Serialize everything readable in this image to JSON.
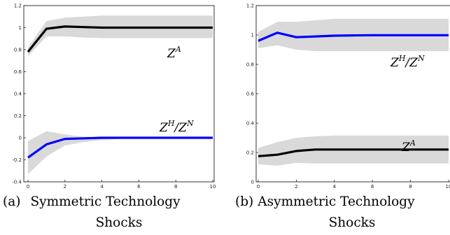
{
  "panels": [
    {
      "caption_tag": "(a)",
      "caption_line1": "Symmetric Technology",
      "caption_line2": "Shocks"
    },
    {
      "caption_tag": "(b)",
      "caption_line1": "Asymmetric Technology",
      "caption_line2": "Shocks"
    }
  ],
  "chart_data": [
    {
      "type": "line",
      "title": "",
      "xlabel": "",
      "ylabel": "",
      "xlim": [
        0,
        10
      ],
      "ylim": [
        -0.4,
        1.2
      ],
      "x_ticks": [
        0,
        2,
        4,
        6,
        8,
        10
      ],
      "y_ticks": [
        -0.4,
        -0.2,
        0,
        0.2,
        0.4,
        0.6,
        0.8,
        1,
        1.2
      ],
      "x_tick_labels": [
        "0",
        "2",
        "4",
        "6",
        "8",
        "10"
      ],
      "y_tick_labels": [
        "-0.4",
        "-0.2",
        "0",
        "0.2",
        "0.4",
        "0.6",
        "0.8",
        "1",
        "1.2"
      ],
      "grid": false,
      "band_color": "#d9d9d9",
      "series": [
        {
          "label_base": "Z",
          "label_sup": "A",
          "color": "#000000",
          "x": [
            0,
            1,
            2,
            3,
            4,
            5,
            6,
            7,
            8,
            9,
            10
          ],
          "values": [
            0.78,
            0.99,
            1.01,
            1.005,
            1.0,
            1.0,
            1.0,
            1.0,
            1.0,
            1.0,
            1.0
          ],
          "band_low": [
            0.74,
            0.92,
            0.92,
            0.91,
            0.905,
            0.905,
            0.905,
            0.905,
            0.905,
            0.905,
            0.905
          ],
          "band_high": [
            0.82,
            1.06,
            1.09,
            1.1,
            1.11,
            1.11,
            1.11,
            1.11,
            1.11,
            1.11,
            1.11
          ]
        },
        {
          "label_base": "Z",
          "label_sup": "H",
          "label_mid": "/Z",
          "label_sup2": "N",
          "color": "#0000ff",
          "x": [
            0,
            1,
            2,
            3,
            4,
            5,
            6,
            7,
            8,
            9,
            10
          ],
          "values": [
            -0.18,
            -0.06,
            -0.01,
            -0.005,
            0.0,
            0.0,
            0.0,
            0.0,
            0.0,
            0.0,
            0.0
          ],
          "band_low": [
            -0.33,
            -0.17,
            -0.07,
            -0.04,
            -0.02,
            -0.01,
            -0.005,
            -0.005,
            -0.005,
            -0.005,
            -0.005
          ],
          "band_high": [
            -0.03,
            0.06,
            0.03,
            0.01,
            0.005,
            0.003,
            0.003,
            0.003,
            0.003,
            0.003,
            0.003
          ]
        }
      ]
    },
    {
      "type": "line",
      "title": "",
      "xlabel": "",
      "ylabel": "",
      "xlim": [
        0,
        10
      ],
      "ylim": [
        0,
        1.2
      ],
      "x_ticks": [
        0,
        2,
        4,
        6,
        8,
        10
      ],
      "y_ticks": [
        0,
        0.2,
        0.4,
        0.6,
        0.8,
        1,
        1.2
      ],
      "x_tick_labels": [
        "0",
        "2",
        "4",
        "6",
        "8",
        "10"
      ],
      "y_tick_labels": [
        "0",
        "0.2",
        "0.4",
        "0.6",
        "0.8",
        "1",
        "1.2"
      ],
      "grid": false,
      "band_color": "#d9d9d9",
      "series": [
        {
          "label_base": "Z",
          "label_sup": "H",
          "label_mid": "/Z",
          "label_sup2": "N",
          "color": "#0000ff",
          "x": [
            0,
            1,
            2,
            3,
            4,
            5,
            6,
            7,
            8,
            9,
            10
          ],
          "values": [
            0.96,
            1.015,
            0.985,
            0.99,
            0.995,
            0.997,
            0.998,
            0.998,
            0.998,
            0.998,
            0.998
          ],
          "band_low": [
            0.91,
            0.93,
            0.9,
            0.89,
            0.89,
            0.89,
            0.89,
            0.89,
            0.89,
            0.89,
            0.89
          ],
          "band_high": [
            1.02,
            1.09,
            1.09,
            1.1,
            1.11,
            1.11,
            1.11,
            1.11,
            1.11,
            1.11,
            1.11
          ]
        },
        {
          "label_base": "Z",
          "label_sup": "A",
          "color": "#000000",
          "x": [
            0,
            1,
            2,
            3,
            4,
            5,
            6,
            7,
            8,
            9,
            10
          ],
          "values": [
            0.175,
            0.185,
            0.21,
            0.22,
            0.22,
            0.22,
            0.22,
            0.22,
            0.22,
            0.22,
            0.22
          ],
          "band_low": [
            0.12,
            0.11,
            0.13,
            0.125,
            0.125,
            0.125,
            0.125,
            0.125,
            0.125,
            0.125,
            0.125
          ],
          "band_high": [
            0.23,
            0.27,
            0.3,
            0.31,
            0.315,
            0.315,
            0.315,
            0.315,
            0.315,
            0.315,
            0.315
          ]
        }
      ]
    }
  ]
}
